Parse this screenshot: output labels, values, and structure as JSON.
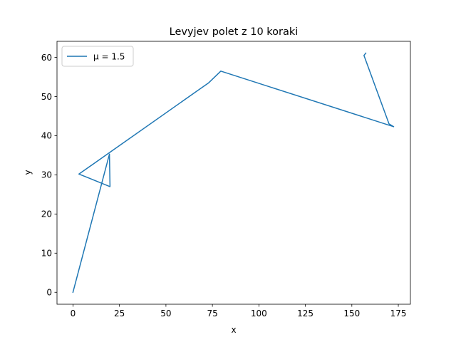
{
  "chart_data": {
    "type": "line",
    "title": "Levyjev polet z 10 koraki",
    "xlabel": "x",
    "ylabel": "y",
    "xlim": [
      -8.6,
      181.5
    ],
    "ylim": [
      -3.05,
      64.1
    ],
    "xticks": [
      0,
      25,
      50,
      75,
      100,
      125,
      150,
      175
    ],
    "yticks": [
      0,
      10,
      20,
      30,
      40,
      50,
      60
    ],
    "grid": false,
    "legend_position": "top-left",
    "series": [
      {
        "name": "μ = 1.5",
        "color": "#1f77b4",
        "x": [
          0,
          19.6,
          19.9,
          3.2,
          73.0,
          79.5,
          172.5,
          170.0,
          156.5,
          157.5
        ],
        "y": [
          0,
          35.3,
          27.0,
          30.2,
          53.5,
          56.5,
          42.3,
          43.0,
          60.5,
          61.1
        ]
      }
    ]
  }
}
